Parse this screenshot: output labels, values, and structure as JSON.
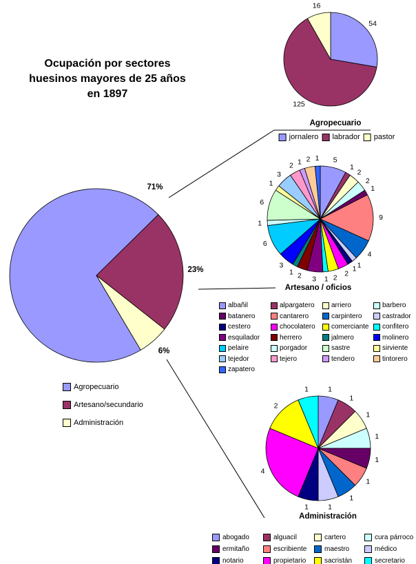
{
  "page": {
    "title_lines": [
      "Ocupación por sectores",
      "huesinos mayores de 25 años",
      "en 1897"
    ]
  },
  "chart_data": [
    {
      "id": "main",
      "type": "pie",
      "title": "",
      "labels": [
        "Agropecuario",
        "Artesano/secundario",
        "Administración"
      ],
      "values": [
        195,
        63,
        16
      ],
      "percent_labels": [
        "71%",
        "23%",
        "6%"
      ],
      "colors": [
        "#9999FF",
        "#993366",
        "#FFFFCC"
      ],
      "rotation_deg": 149.3,
      "legend_position": "bottom-left-vertical",
      "show_value_labels": false
    },
    {
      "id": "agropecuario",
      "type": "pie",
      "title": "Agropecuario",
      "labels": [
        "jornalero",
        "labrador",
        "pastor"
      ],
      "values": [
        54,
        125,
        16
      ],
      "colors": [
        "#9999FF",
        "#993366",
        "#FFFFCC"
      ],
      "rotation_deg": 0,
      "legend_position": "bottom-horizontal",
      "show_value_labels": true
    },
    {
      "id": "artesano",
      "type": "pie",
      "title": "Artesano / oficios",
      "labels": [
        "albañil",
        "alpargatero",
        "arriero",
        "barbero",
        "batanero",
        "cantarero",
        "carpintero",
        "castrador",
        "cestero",
        "chocolatero",
        "comerciante",
        "confitero",
        "esquilador",
        "herrero",
        "jalmero",
        "molinero",
        "pelaire",
        "porgador",
        "sastre",
        "sirviente",
        "tejedor",
        "tejero",
        "tendero",
        "tintorero",
        "zapatero"
      ],
      "values": [
        5,
        1,
        2,
        2,
        1,
        9,
        4,
        1,
        1,
        2,
        2,
        1,
        3,
        2,
        1,
        3,
        6,
        1,
        6,
        1,
        3,
        2,
        1,
        2,
        1
      ],
      "colors": [
        "#9999FF",
        "#993366",
        "#FFFFCC",
        "#CCFFFF",
        "#660066",
        "#FF8080",
        "#0066CC",
        "#CCCCFF",
        "#000080",
        "#FF00FF",
        "#FFFF00",
        "#00FFFF",
        "#800080",
        "#800000",
        "#008080",
        "#0000FF",
        "#00CCFF",
        "#CCFFFF",
        "#CCFFCC",
        "#FFFF99",
        "#99CCFF",
        "#FF99CC",
        "#CC99FF",
        "#FFCC99",
        "#3366FF"
      ],
      "rotation_deg": 0,
      "legend_position": "bottom-grid",
      "show_value_labels": true
    },
    {
      "id": "administracion",
      "type": "pie",
      "title": "Administración",
      "labels": [
        "abogado",
        "alguacil",
        "cartero",
        "cura párroco",
        "ermitaño",
        "escribiente",
        "maestro",
        "médico",
        "notario",
        "propietario",
        "sacristán",
        "secretario"
      ],
      "values": [
        1,
        1,
        1,
        1,
        1,
        1,
        1,
        1,
        1,
        4,
        2,
        1
      ],
      "colors": [
        "#9999FF",
        "#993366",
        "#FFFFCC",
        "#CCFFFF",
        "#660066",
        "#FF8080",
        "#0066CC",
        "#CCCCFF",
        "#000080",
        "#FF00FF",
        "#FFFF00",
        "#00FFFF"
      ],
      "rotation_deg": 0,
      "legend_position": "bottom-grid",
      "show_value_labels": true
    }
  ]
}
